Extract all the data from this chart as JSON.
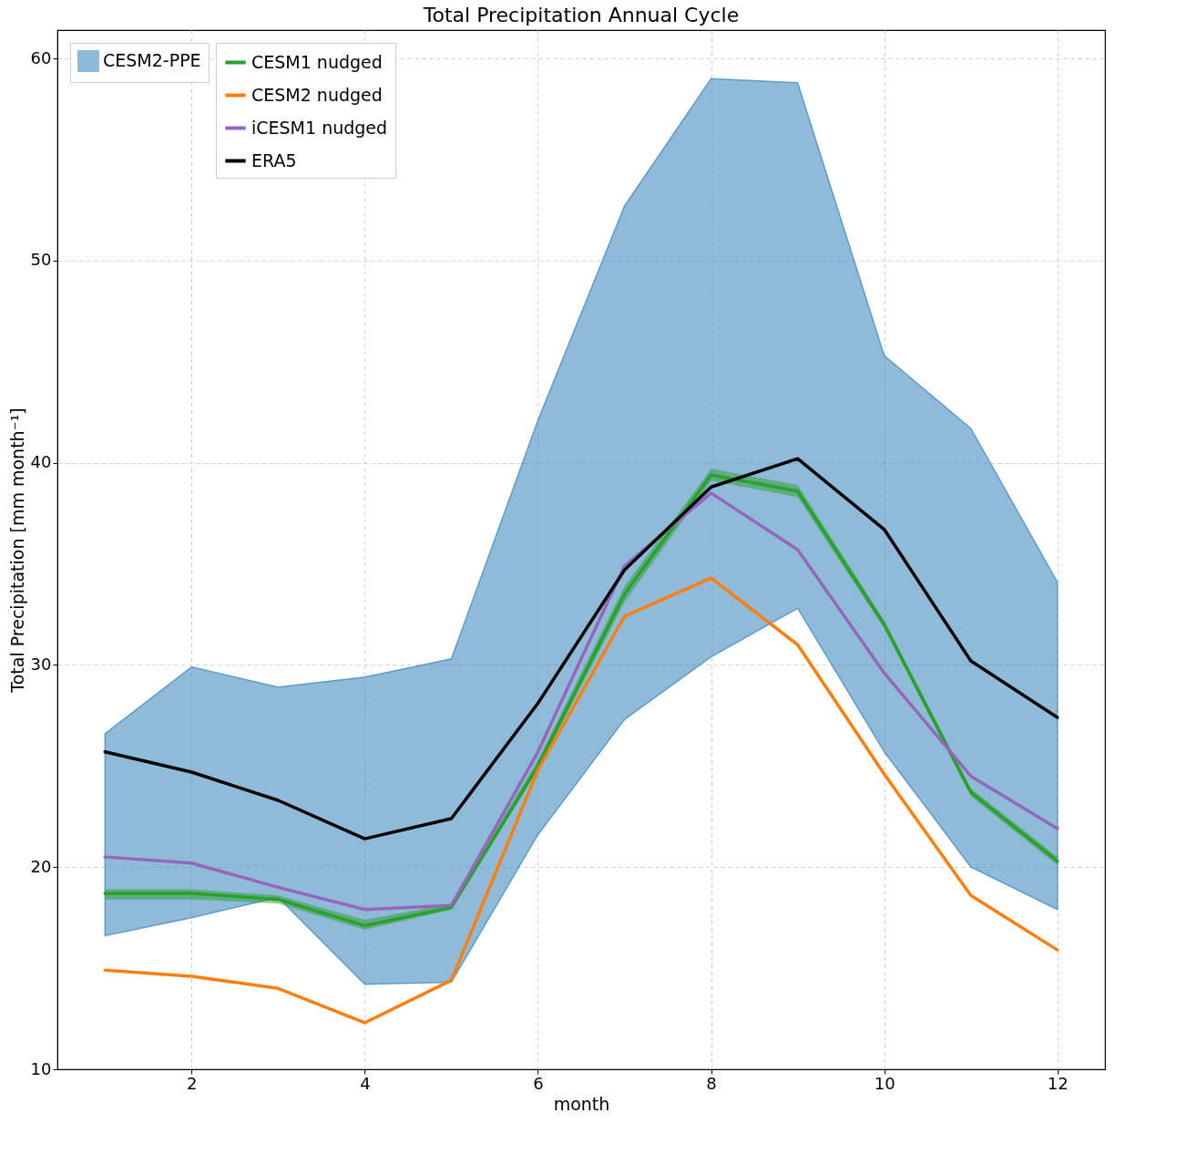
{
  "chart_data": {
    "type": "line",
    "title": "Total Precipitation Annual Cycle",
    "xlabel": "month",
    "ylabel": "Total Precipitation [mm month⁻¹]",
    "x": [
      1,
      2,
      3,
      4,
      5,
      6,
      7,
      8,
      9,
      10,
      11,
      12
    ],
    "xlim": [
      0.45,
      12.55
    ],
    "ylim": [
      10,
      61.4
    ],
    "xticks": [
      2,
      4,
      6,
      8,
      10,
      12
    ],
    "yticks": [
      10,
      20,
      30,
      40,
      50,
      60
    ],
    "grid": true,
    "legend": "top left",
    "series": [
      {
        "name": "CESM2-PPE",
        "type": "line",
        "color": "#1f77b4",
        "values": [
          null,
          null,
          null,
          null,
          null,
          null,
          null,
          null,
          null,
          null,
          null,
          null
        ],
        "lower": [
          16.6,
          17.5,
          18.5,
          14.2,
          14.3,
          21.6,
          27.3,
          30.4,
          32.8,
          25.7,
          20.0,
          17.9
        ],
        "upper": [
          26.6,
          29.9,
          28.9,
          29.4,
          30.3,
          42.1,
          52.7,
          59.0,
          58.8,
          45.3,
          41.7,
          34.1
        ]
      },
      {
        "name": "CESM1 nudged",
        "type": "line",
        "color": "#2ca02c",
        "values": [
          18.7,
          18.7,
          18.4,
          17.1,
          18.0,
          25.0,
          33.5,
          39.4,
          38.6,
          32.0,
          23.7,
          20.3
        ],
        "lower": [
          18.4,
          18.4,
          18.2,
          16.9,
          17.9,
          24.8,
          33.1,
          39.1,
          38.3,
          31.8,
          23.5,
          20.1
        ],
        "upper": [
          18.9,
          18.9,
          18.6,
          17.4,
          18.2,
          25.3,
          33.9,
          39.7,
          38.9,
          32.2,
          23.9,
          20.5
        ]
      },
      {
        "name": "CESM2 nudged",
        "type": "line",
        "color": "#ff7f0e",
        "values": [
          14.9,
          14.6,
          14.0,
          12.3,
          14.4,
          24.8,
          32.4,
          34.3,
          31.0,
          24.6,
          18.6,
          15.9
        ]
      },
      {
        "name": "iCESM1 nudged",
        "type": "line",
        "color": "#9467bd",
        "values": [
          20.5,
          20.2,
          19.0,
          17.9,
          18.1,
          25.7,
          34.9,
          38.5,
          35.7,
          29.6,
          24.5,
          21.9
        ]
      },
      {
        "name": "ERA5",
        "type": "line",
        "color": "#000000",
        "values": [
          25.7,
          24.7,
          23.3,
          21.4,
          22.4,
          28.1,
          34.7,
          38.8,
          40.2,
          36.7,
          30.2,
          27.4
        ]
      }
    ]
  }
}
